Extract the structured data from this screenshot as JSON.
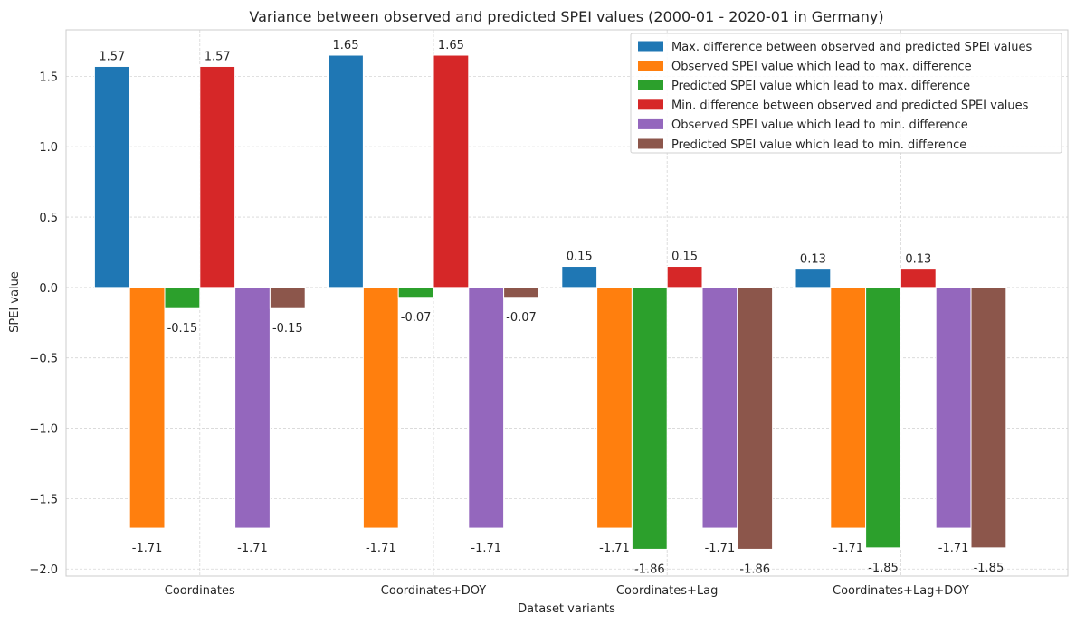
{
  "chart_data": {
    "type": "bar",
    "title": "Variance between observed and predicted SPEI values (2000-01 - 2020-01 in Germany)",
    "xlabel": "Dataset variants",
    "ylabel": "SPEI value",
    "categories": [
      "Coordinates",
      "Coordinates+DOY",
      "Coordinates+Lag",
      "Coordinates+Lag+DOY"
    ],
    "ylim": [
      -2.05,
      1.83
    ],
    "yticks": [
      2.0,
      1.5,
      1.0,
      0.5,
      0.0,
      -0.5,
      -1.0,
      -1.5,
      -2.0
    ],
    "ytick_labels": [
      "",
      "1.5",
      "1.0",
      "0.5",
      "0.0",
      "−0.5",
      "−1.0",
      "−1.5",
      "−2.0"
    ],
    "grid": true,
    "legend_position": "top-right",
    "series": [
      {
        "name": "Max. difference between observed and predicted SPEI values",
        "color": "#1f77b4",
        "values": [
          1.57,
          1.65,
          0.15,
          0.13
        ],
        "labels": [
          "1.57",
          "1.65",
          "0.15",
          "0.13"
        ]
      },
      {
        "name": "Observed SPEI value which lead to max. difference",
        "color": "#ff7f0e",
        "values": [
          -1.71,
          -1.71,
          -1.71,
          -1.71
        ],
        "labels": [
          "-1.71",
          "-1.71",
          "-1.71",
          "-1.71"
        ]
      },
      {
        "name": "Predicted SPEI value which lead to max. difference",
        "color": "#2ca02c",
        "values": [
          -0.15,
          -0.07,
          -1.86,
          -1.85
        ],
        "labels": [
          "-0.15",
          "-0.07",
          "-1.86",
          "-1.85"
        ]
      },
      {
        "name": "Min. difference between observed and predicted SPEI values",
        "color": "#d62728",
        "values": [
          1.57,
          1.65,
          0.15,
          0.13
        ],
        "labels": [
          "1.57",
          "1.65",
          "0.15",
          "0.13"
        ]
      },
      {
        "name": "Observed SPEI value which lead to min. difference",
        "color": "#9467bd",
        "values": [
          -1.71,
          -1.71,
          -1.71,
          -1.71
        ],
        "labels": [
          "-1.71",
          "-1.71",
          "-1.71",
          "-1.71"
        ]
      },
      {
        "name": "Predicted SPEI value which lead to min. difference",
        "color": "#8c564b",
        "values": [
          -0.15,
          -0.07,
          -1.86,
          -1.85
        ],
        "labels": [
          "-0.15",
          "-0.07",
          "-1.86",
          "-1.85"
        ]
      }
    ]
  }
}
